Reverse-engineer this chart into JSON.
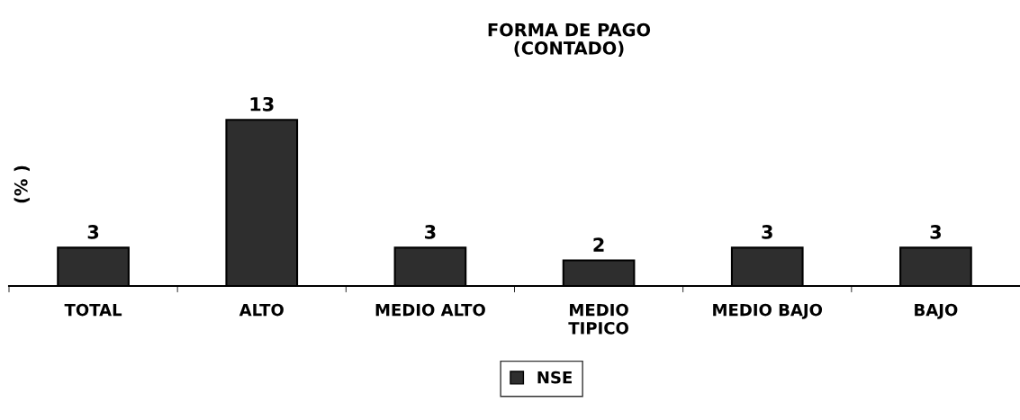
{
  "chart_data": {
    "type": "bar",
    "title": "FORMA DE PAGO\n(CONTADO)",
    "ylabel": "(% )",
    "categories": [
      "TOTAL",
      "ALTO",
      "MEDIO ALTO",
      "MEDIO\nTIPICO",
      "MEDIO BAJO",
      "BAJO"
    ],
    "series": [
      {
        "name": "NSE",
        "color": "#2e2e2e",
        "values": [
          3,
          13,
          3,
          2,
          3,
          3
        ]
      }
    ],
    "data_labels": true,
    "legend": "bottom",
    "tick_labels": "x",
    "grid": false
  }
}
